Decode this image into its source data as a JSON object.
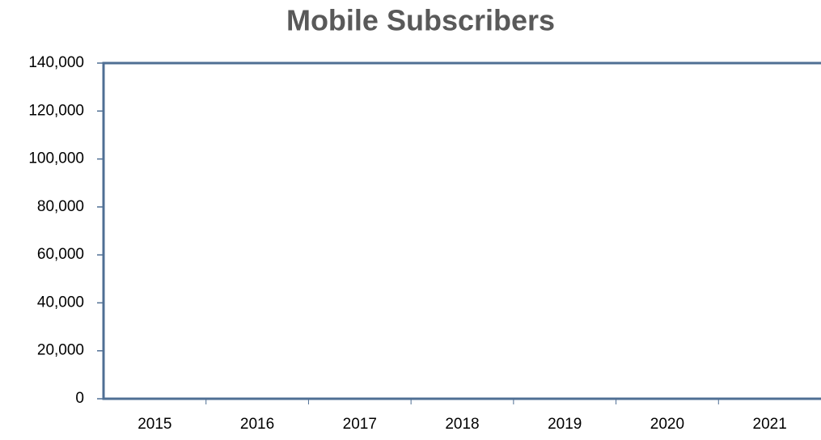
{
  "chart_data": {
    "type": "bar",
    "title": "Mobile Subscribers",
    "categories": [
      "2015",
      "2016",
      "2017",
      "2018",
      "2019",
      "2020",
      "2021"
    ],
    "ylim": [
      0,
      140000
    ],
    "yticks": [
      0,
      {
        "value": 20000,
        "label": "20,000"
      },
      {
        "value": 40000,
        "label": "40,000"
      },
      {
        "value": 60000,
        "label": "60,000"
      },
      {
        "value": 80000,
        "label": "80,000"
      },
      {
        "value": 100000,
        "label": "100,000"
      },
      {
        "value": 120000,
        "label": "120,000"
      },
      {
        "value": 140000,
        "label": "140,000"
      }
    ],
    "grid": false
  }
}
